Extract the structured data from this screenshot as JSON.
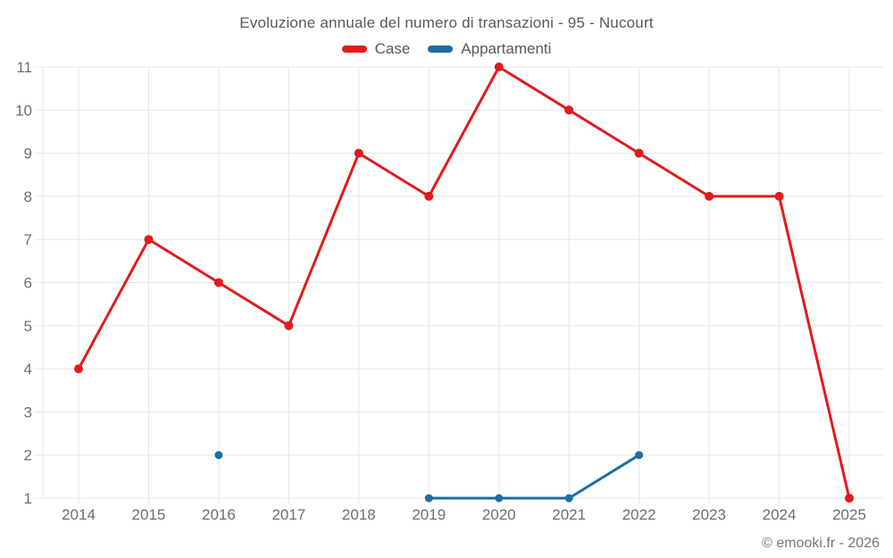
{
  "chart_data": {
    "type": "line",
    "title": "Evoluzione annuale del numero di transazioni - 95 - Nucourt",
    "categories": [
      "2014",
      "2015",
      "2016",
      "2017",
      "2018",
      "2019",
      "2020",
      "2021",
      "2022",
      "2023",
      "2024",
      "2025"
    ],
    "series": [
      {
        "name": "Case",
        "color": "#e31a1c",
        "values": [
          4,
          7,
          6,
          5,
          9,
          8,
          11,
          10,
          9,
          8,
          8,
          1
        ]
      },
      {
        "name": "Appartamenti",
        "color": "#1c6ea4",
        "values": [
          null,
          null,
          2,
          null,
          null,
          1,
          1,
          1,
          2,
          null,
          null,
          null
        ]
      }
    ],
    "xlabel": "",
    "ylabel": "",
    "ylim": [
      1,
      11
    ],
    "yticks": [
      1,
      2,
      3,
      4,
      5,
      6,
      7,
      8,
      9,
      10,
      11
    ],
    "grid": true,
    "grid_color": "#e7e7e7",
    "tick_text_color": "#6e6e6e",
    "legend_position": "top"
  },
  "footer": {
    "credit": "© emooki.fr - 2026"
  }
}
